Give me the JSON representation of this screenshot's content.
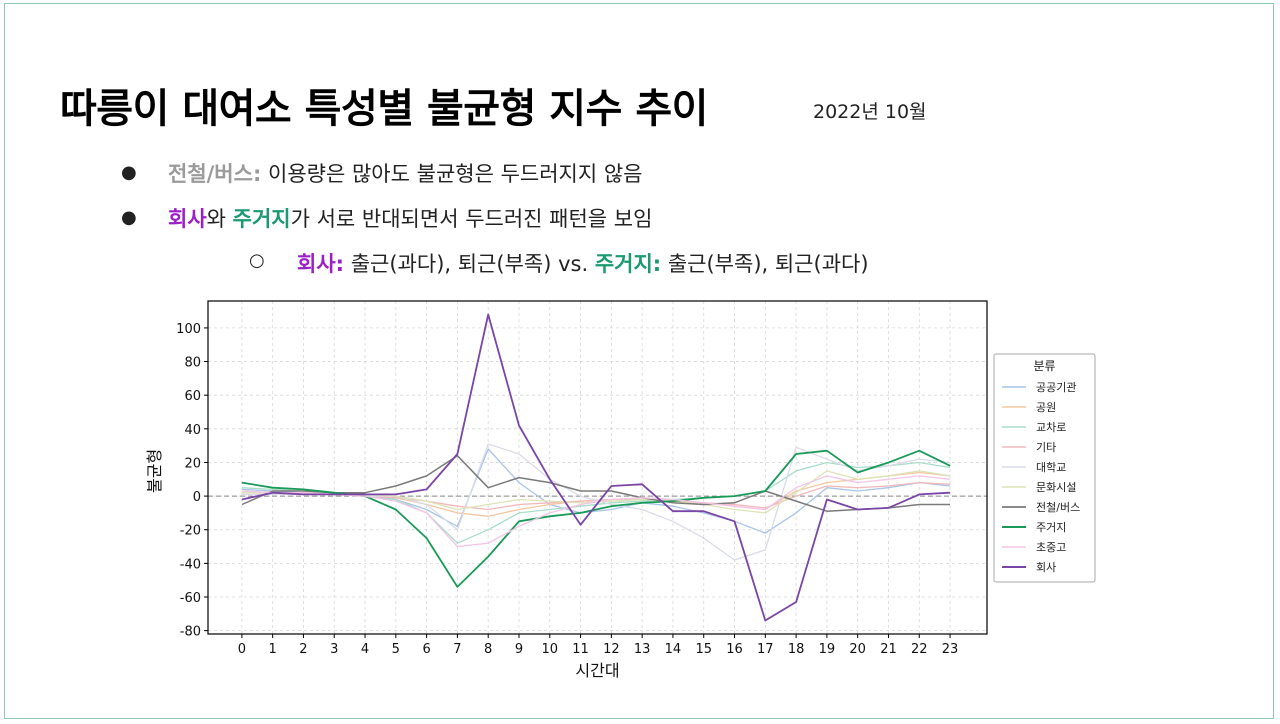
{
  "slide": {
    "title": "따릉이 대여소 특성별 불균형 지수 추이",
    "date": "2022년 10월",
    "bullet_symbol": "●",
    "sub_bullet_symbol": "○",
    "bullets": [
      {
        "label": "전철/버스:",
        "text": " 이용량은 많아도 불균형은 두드러지지 않음"
      },
      {
        "label_a": "회사",
        "mid": "와 ",
        "label_b": "주거지",
        "text": "가 서로 반대되면서 두드러진 패턴을 보임"
      }
    ],
    "sub_bullet": {
      "label_a": "회사:",
      "text_a": " 출근(과다), 퇴근(부족) vs. ",
      "label_b": "주거지:",
      "text_b": " 출근(부족), 퇴근(과다)"
    }
  },
  "colors": {
    "purple": "#9d1ec9",
    "green": "#1a9a6e",
    "gray": "#9a9a9a"
  },
  "chart_data": {
    "type": "line",
    "xlabel": "시간대",
    "ylabel": "불균형",
    "x": [
      0,
      1,
      2,
      3,
      4,
      5,
      6,
      7,
      8,
      9,
      10,
      11,
      12,
      13,
      14,
      15,
      16,
      17,
      18,
      19,
      20,
      21,
      22,
      23
    ],
    "ylim": [
      -82,
      116
    ],
    "yticks": [
      -80,
      -60,
      -40,
      -20,
      0,
      20,
      40,
      60,
      80,
      100
    ],
    "grid": true,
    "zero_line": true,
    "legend_title": "분류",
    "legend_position": "right",
    "series": [
      {
        "name": "공공기관",
        "color": "#a9c4e8",
        "width": 1.3,
        "values": [
          4,
          3,
          2,
          1,
          0,
          -2,
          -8,
          -18,
          28,
          8,
          -5,
          -10,
          -8,
          -4,
          -6,
          -10,
          -15,
          -22,
          -10,
          5,
          3,
          5,
          8,
          6
        ]
      },
      {
        "name": "공원",
        "color": "#f3c7a0",
        "width": 1.3,
        "values": [
          3,
          2,
          2,
          1,
          0,
          -1,
          -5,
          -10,
          -12,
          -8,
          -5,
          -3,
          -2,
          -1,
          -2,
          -4,
          -6,
          -8,
          3,
          8,
          10,
          12,
          14,
          12
        ]
      },
      {
        "name": "교차로",
        "color": "#a8ddc9",
        "width": 1.3,
        "values": [
          5,
          4,
          3,
          2,
          1,
          -2,
          -10,
          -28,
          -20,
          -10,
          -8,
          -6,
          -4,
          -3,
          -2,
          -1,
          0,
          3,
          15,
          20,
          17,
          18,
          20,
          17
        ]
      },
      {
        "name": "기타",
        "color": "#f1b8bd",
        "width": 1.3,
        "values": [
          2,
          2,
          1,
          1,
          0,
          -1,
          -3,
          -6,
          -8,
          -5,
          -4,
          -3,
          -2,
          -2,
          -3,
          -4,
          -5,
          -7,
          0,
          6,
          5,
          6,
          8,
          7
        ]
      },
      {
        "name": "대학교",
        "color": "#d9dce8",
        "width": 1.3,
        "values": [
          1,
          1,
          1,
          1,
          0,
          0,
          -5,
          -20,
          31,
          25,
          10,
          0,
          -5,
          -8,
          -15,
          -25,
          -38,
          -32,
          29,
          22,
          15,
          18,
          22,
          20
        ]
      },
      {
        "name": "문화시설",
        "color": "#dde3b5",
        "width": 1.3,
        "values": [
          2,
          2,
          2,
          1,
          1,
          0,
          -3,
          -8,
          -5,
          -2,
          -3,
          -4,
          -3,
          -2,
          -3,
          -5,
          -8,
          -10,
          2,
          15,
          10,
          12,
          15,
          12
        ]
      },
      {
        "name": "전철/버스",
        "color": "#7a7a7a",
        "width": 1.5,
        "values": [
          -5,
          3,
          3,
          2,
          2,
          6,
          12,
          24,
          5,
          11,
          8,
          3,
          3,
          -1,
          -4,
          -5,
          -4,
          3,
          -3,
          -9,
          -8,
          -7,
          -5,
          -5
        ]
      },
      {
        "name": "주거지",
        "color": "#1a9a58",
        "width": 1.8,
        "values": [
          8,
          5,
          4,
          2,
          0,
          -8,
          -25,
          -54,
          -36,
          -15,
          -12,
          -10,
          -6,
          -4,
          -3,
          -1,
          0,
          3,
          25,
          27,
          14,
          20,
          27,
          18
        ]
      },
      {
        "name": "초중고",
        "color": "#f3c5e6",
        "width": 1.3,
        "values": [
          3,
          2,
          2,
          1,
          0,
          -3,
          -10,
          -30,
          -28,
          -18,
          -10,
          -5,
          -2,
          -1,
          -2,
          -4,
          -6,
          -8,
          5,
          12,
          8,
          10,
          12,
          10
        ]
      },
      {
        "name": "회사",
        "color": "#7a45a6",
        "width": 1.8,
        "values": [
          -2,
          2,
          1,
          1,
          1,
          1,
          4,
          25,
          108,
          42,
          10,
          -17,
          6,
          7,
          -9,
          -9,
          -15,
          -74,
          -63,
          -2,
          -8,
          -7,
          1,
          2
        ]
      }
    ]
  }
}
